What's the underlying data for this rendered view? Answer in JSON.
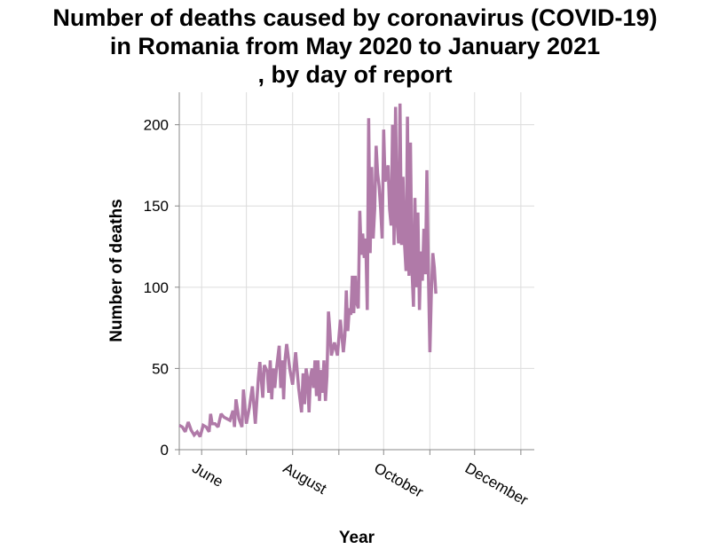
{
  "chart_data": {
    "type": "line",
    "title_lines": [
      "Number of deaths caused by coronavirus (COVID-19)",
      "in Romania from May 2020 to January 2021",
      ", by day of report"
    ],
    "xlabel": "Year",
    "ylabel": "Number of deaths",
    "ylim": [
      0,
      220
    ],
    "yticks": [
      0,
      50,
      100,
      150,
      200
    ],
    "xlim": [
      0,
      238
    ],
    "xticks": [
      {
        "label": "",
        "value": 0
      },
      {
        "label": "June",
        "value": 15
      },
      {
        "label": "",
        "value": 45
      },
      {
        "label": "August",
        "value": 76
      },
      {
        "label": "",
        "value": 107
      },
      {
        "label": "October",
        "value": 137
      },
      {
        "label": "",
        "value": 168
      },
      {
        "label": "December",
        "value": 198
      },
      {
        "label": "",
        "value": 229
      }
    ],
    "grid": true,
    "series": [
      {
        "name": "Number of deaths",
        "color": "#b07aa8",
        "points": [
          [
            0,
            15
          ],
          [
            2,
            14
          ],
          [
            4,
            11
          ],
          [
            6,
            17
          ],
          [
            8,
            12
          ],
          [
            10,
            9
          ],
          [
            12,
            11
          ],
          [
            14,
            8
          ],
          [
            16,
            15
          ],
          [
            18,
            14
          ],
          [
            20,
            11
          ],
          [
            21,
            22
          ],
          [
            22,
            16
          ],
          [
            24,
            16
          ],
          [
            26,
            14
          ],
          [
            28,
            22
          ],
          [
            30,
            20
          ],
          [
            32,
            19
          ],
          [
            34,
            18
          ],
          [
            36,
            24
          ],
          [
            37,
            14
          ],
          [
            38,
            31
          ],
          [
            40,
            19
          ],
          [
            42,
            14
          ],
          [
            43,
            37
          ],
          [
            45,
            16
          ],
          [
            47,
            26
          ],
          [
            49,
            39
          ],
          [
            51,
            16
          ],
          [
            53,
            44
          ],
          [
            54,
            54
          ],
          [
            56,
            32
          ],
          [
            57,
            52
          ],
          [
            59,
            48
          ],
          [
            60,
            35
          ],
          [
            61,
            55
          ],
          [
            62,
            31
          ],
          [
            63,
            50
          ],
          [
            64,
            38
          ],
          [
            65,
            48
          ],
          [
            67,
            64
          ],
          [
            68,
            38
          ],
          [
            69,
            55
          ],
          [
            70,
            31
          ],
          [
            71,
            56
          ],
          [
            72,
            65
          ],
          [
            74,
            50
          ],
          [
            76,
            40
          ],
          [
            78,
            60
          ],
          [
            80,
            38
          ],
          [
            82,
            23
          ],
          [
            83,
            47
          ],
          [
            84,
            28
          ],
          [
            85,
            50
          ],
          [
            86,
            44
          ],
          [
            87,
            23
          ],
          [
            88,
            45
          ],
          [
            89,
            50
          ],
          [
            90,
            38
          ],
          [
            91,
            55
          ],
          [
            92,
            33
          ],
          [
            93,
            55
          ],
          [
            94,
            30
          ],
          [
            95,
            49
          ],
          [
            96,
            35
          ],
          [
            97,
            55
          ],
          [
            98,
            30
          ],
          [
            99,
            45
          ],
          [
            100,
            85
          ],
          [
            101,
            73
          ],
          [
            102,
            58
          ],
          [
            104,
            66
          ],
          [
            106,
            58
          ],
          [
            108,
            80
          ],
          [
            110,
            60
          ],
          [
            111,
            70
          ],
          [
            112,
            98
          ],
          [
            113,
            73
          ],
          [
            114,
            87
          ],
          [
            115,
            83
          ],
          [
            116,
            107
          ],
          [
            117,
            84
          ],
          [
            118,
            107
          ],
          [
            119,
            90
          ],
          [
            120,
            87
          ],
          [
            121,
            147
          ],
          [
            122,
            120
          ],
          [
            123,
            133
          ],
          [
            124,
            118
          ],
          [
            125,
            130
          ],
          [
            126,
            86
          ],
          [
            127,
            204
          ],
          [
            128,
            121
          ],
          [
            129,
            174
          ],
          [
            130,
            130
          ],
          [
            131,
            148
          ],
          [
            132,
            187
          ],
          [
            133,
            170
          ],
          [
            134,
            162
          ],
          [
            135,
            148
          ],
          [
            136,
            130
          ],
          [
            137,
            197
          ],
          [
            138,
            165
          ],
          [
            139,
            170
          ],
          [
            140,
            175
          ],
          [
            141,
            148
          ],
          [
            142,
            138
          ],
          [
            143,
            200
          ],
          [
            144,
            126
          ],
          [
            145,
            211
          ],
          [
            146,
            140
          ],
          [
            147,
            127
          ],
          [
            148,
            213
          ],
          [
            149,
            126
          ],
          [
            150,
            168
          ],
          [
            151,
            127
          ],
          [
            152,
            110
          ],
          [
            153,
            205
          ],
          [
            154,
            107
          ],
          [
            155,
            189
          ],
          [
            156,
            111
          ],
          [
            157,
            88
          ],
          [
            158,
            155
          ],
          [
            159,
            100
          ],
          [
            160,
            146
          ],
          [
            161,
            86
          ],
          [
            162,
            122
          ],
          [
            163,
            104
          ],
          [
            164,
            136
          ],
          [
            165,
            108
          ],
          [
            166,
            172
          ],
          [
            167,
            109
          ],
          [
            168,
            60
          ],
          [
            169,
            96
          ],
          [
            170,
            121
          ],
          [
            171,
            112
          ],
          [
            172,
            96
          ]
        ]
      }
    ]
  }
}
